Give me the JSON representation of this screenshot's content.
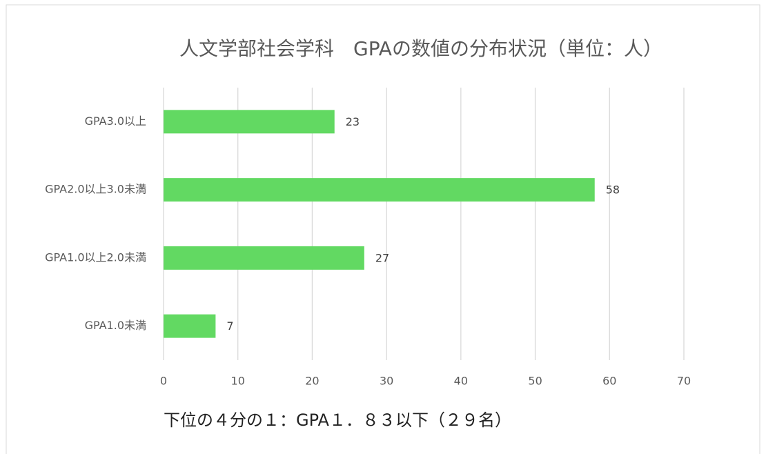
{
  "chart_data": {
    "type": "barh",
    "title": "人文学部社会学科　GPAの数値の分布状況（単位：人）",
    "categories": [
      "GPA3.0以上",
      "GPA2.0以上3.0未満",
      "GPA1.0以上2.0未満",
      "GPA1.0未満"
    ],
    "values": [
      23,
      58,
      27,
      7
    ],
    "color": "#62d962",
    "xlim": [
      0,
      70
    ],
    "xticks": [
      0,
      10,
      20,
      30,
      40,
      50,
      60,
      70
    ],
    "grid": true,
    "annotation": "下位の４分の１：GPA１．８３以下（２９名）"
  }
}
